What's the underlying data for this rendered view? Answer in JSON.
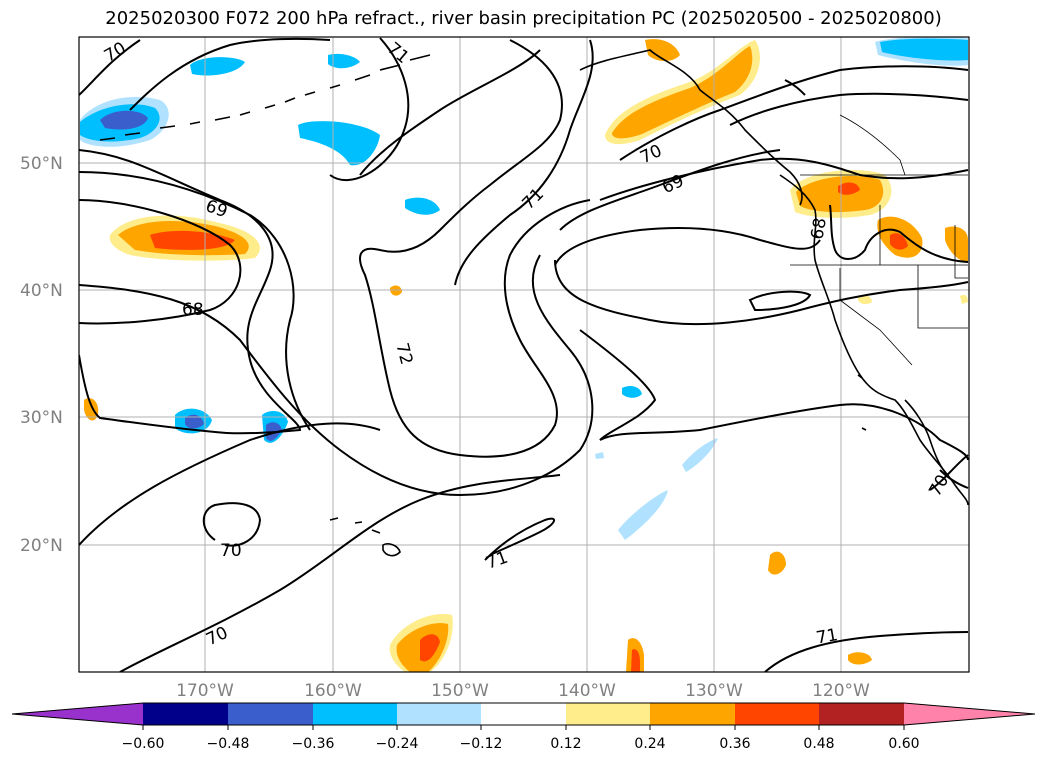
{
  "title": "2025020300 F072 200 hPa refract., river basin precipitation PC (2025020500 - 2025020800)",
  "lat_labels": [
    "50°N",
    "40°N",
    "30°N",
    "20°N"
  ],
  "lon_labels": [
    "170°W",
    "160°W",
    "150°W",
    "140°W",
    "130°W",
    "120°W"
  ],
  "contour_labels": [
    "70",
    "71",
    "70",
    "69",
    "71",
    "69",
    "68",
    "72",
    "70",
    "71",
    "70",
    "71",
    "68",
    "70"
  ],
  "colorbar": {
    "ticks": [
      "−0.60",
      "−0.48",
      "−0.36",
      "−0.24",
      "−0.12",
      "0.12",
      "0.24",
      "0.36",
      "0.48",
      "0.60"
    ],
    "colors": [
      "#9932cc",
      "#00008b",
      "#3a5fcd",
      "#00bfff",
      "#b0e2ff",
      "#ffffff",
      "#ffec8b",
      "#ffa500",
      "#ff4500",
      "#b22222",
      "#ff82ab"
    ]
  },
  "shading_colors": {
    "light_blue": "#b0e2ff",
    "blue": "#00bfff",
    "royal": "#3a5fcd",
    "yellow": "#ffec8b",
    "orange": "#ffa500",
    "red": "#ff4500"
  }
}
